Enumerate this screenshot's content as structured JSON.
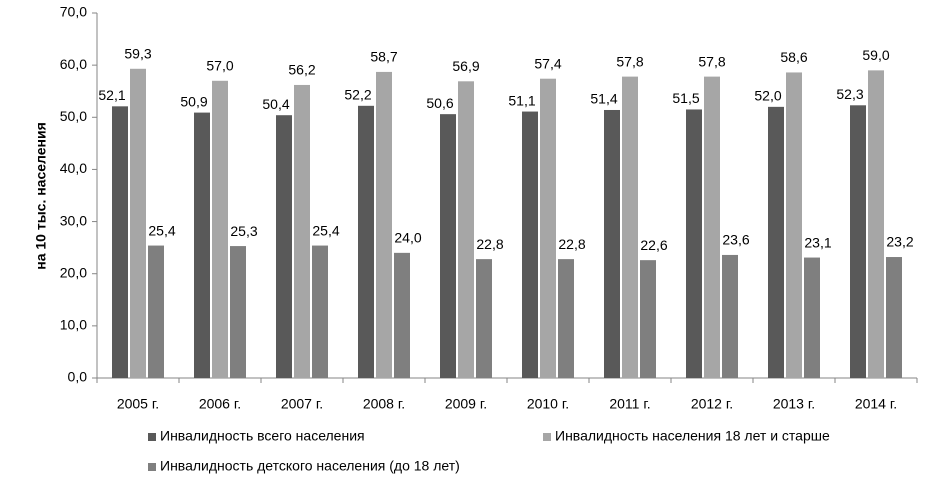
{
  "chart_data": {
    "type": "bar",
    "y_label": "на 10 тыс. населения",
    "categories": [
      "2005 г.",
      "2006 г.",
      "2007 г.",
      "2008 г.",
      "2009 г.",
      "2010 г.",
      "2011 г.",
      "2012 г.",
      "2013 г.",
      "2014 г."
    ],
    "series": [
      {
        "name": "Инвалидность всего населения",
        "color": "#595959",
        "values": [
          52.1,
          50.9,
          50.4,
          52.2,
          50.6,
          51.1,
          51.4,
          51.5,
          52.0,
          52.3
        ],
        "value_labels": [
          "52,1",
          "50,9",
          "50,4",
          "52,2",
          "50,6",
          "51,1",
          "51,4",
          "51,5",
          "52,0",
          "52,3"
        ]
      },
      {
        "name": "Инвалидность  населения 18 лет и старше",
        "color": "#a6a6a6",
        "values": [
          59.3,
          57.0,
          56.2,
          58.7,
          56.9,
          57.4,
          57.8,
          57.8,
          58.6,
          59.0
        ],
        "value_labels": [
          "59,3",
          "57,0",
          "56,2",
          "58,7",
          "56,9",
          "57,4",
          "57,8",
          "57,8",
          "58,6",
          "59,0"
        ]
      },
      {
        "name": "Инвалидность  детского населения (до 18 лет)",
        "color": "#7f7f7f",
        "values": [
          25.4,
          25.3,
          25.4,
          24.0,
          22.8,
          22.8,
          22.6,
          23.6,
          23.1,
          23.2
        ],
        "value_labels": [
          "25,4",
          "25,3",
          "25,4",
          "24,0",
          "22,8",
          "22,8",
          "22,6",
          "23,6",
          "23,1",
          "23,2"
        ]
      }
    ],
    "ylim": [
      0,
      70
    ],
    "yticks": [
      {
        "value": 0,
        "label": "0,0"
      },
      {
        "value": 10,
        "label": "10,0"
      },
      {
        "value": 20,
        "label": "20,0"
      },
      {
        "value": 30,
        "label": "30,0"
      },
      {
        "value": 40,
        "label": "40,0"
      },
      {
        "value": 50,
        "label": "50,0"
      },
      {
        "value": 60,
        "label": "60,0"
      },
      {
        "value": 70,
        "label": "70,0"
      }
    ],
    "grid": false,
    "legend": "bottom"
  }
}
